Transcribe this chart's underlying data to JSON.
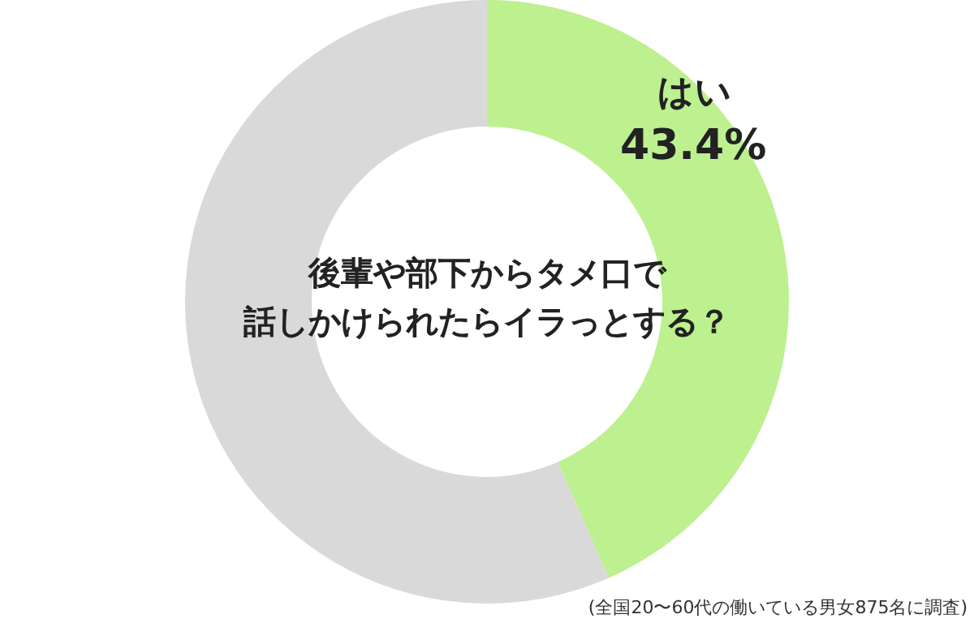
{
  "chart_data": {
    "type": "donut",
    "title": "後輩や部下からタメ口で話しかけられたらイラっとする？",
    "categories": [
      "はい",
      null
    ],
    "values": [
      43.4,
      56.6
    ],
    "colors": [
      "#bdf08f",
      "#d9d9d9"
    ],
    "value_labels": [
      "43.4%",
      null
    ],
    "annotations": [
      "(全国20〜60代の働いている男女875名に調査)"
    ]
  }
}
